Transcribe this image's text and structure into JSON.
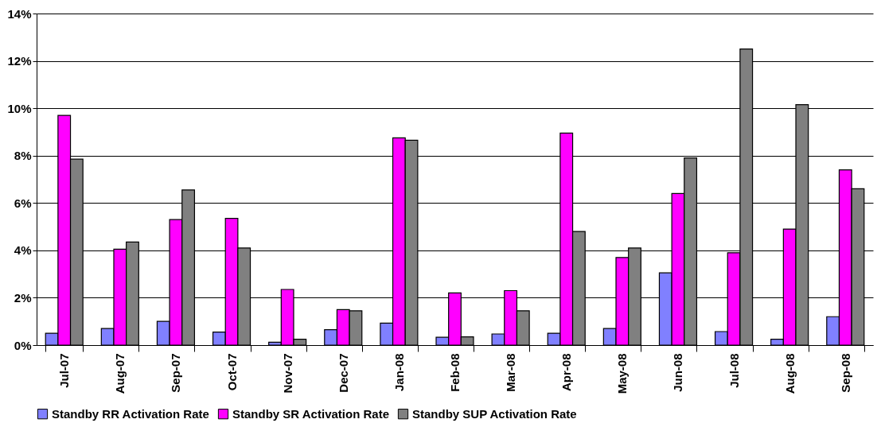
{
  "chart_data": {
    "type": "bar",
    "categories": [
      "Jul-07",
      "Aug-07",
      "Sep-07",
      "Oct-07",
      "Nov-07",
      "Dec-07",
      "Jan-08",
      "Feb-08",
      "Mar-08",
      "Apr-08",
      "May-08",
      "Jun-08",
      "Jul-08",
      "Aug-08",
      "Sep-08"
    ],
    "series": [
      {
        "name": "Standby RR Activation Rate",
        "color": "#8080ff",
        "values": [
          0.5,
          0.7,
          1.0,
          0.55,
          0.12,
          0.65,
          0.93,
          0.33,
          0.47,
          0.5,
          0.7,
          3.05,
          0.57,
          0.25,
          1.2
        ]
      },
      {
        "name": "Standby SR Activation Rate",
        "color": "#ff00ff",
        "values": [
          9.7,
          4.05,
          5.3,
          5.35,
          2.35,
          1.5,
          8.75,
          2.2,
          2.3,
          8.95,
          3.7,
          6.4,
          3.9,
          4.9,
          7.4
        ]
      },
      {
        "name": "Standby SUP Activation Rate",
        "color": "#808080",
        "values": [
          7.85,
          4.35,
          6.55,
          4.1,
          0.25,
          1.45,
          8.65,
          0.35,
          1.45,
          4.8,
          4.1,
          7.9,
          12.5,
          10.15,
          6.6
        ]
      }
    ],
    "ylim": [
      0,
      14
    ],
    "yticks": [
      {
        "value": 0,
        "label": "0%"
      },
      {
        "value": 2,
        "label": "2%"
      },
      {
        "value": 4,
        "label": "4%"
      },
      {
        "value": 6,
        "label": "6%"
      },
      {
        "value": 8,
        "label": "8%"
      },
      {
        "value": 10,
        "label": "10%"
      },
      {
        "value": 12,
        "label": "12%"
      },
      {
        "value": 14,
        "label": "14%"
      }
    ],
    "grid": "y",
    "legend": "bottom"
  }
}
